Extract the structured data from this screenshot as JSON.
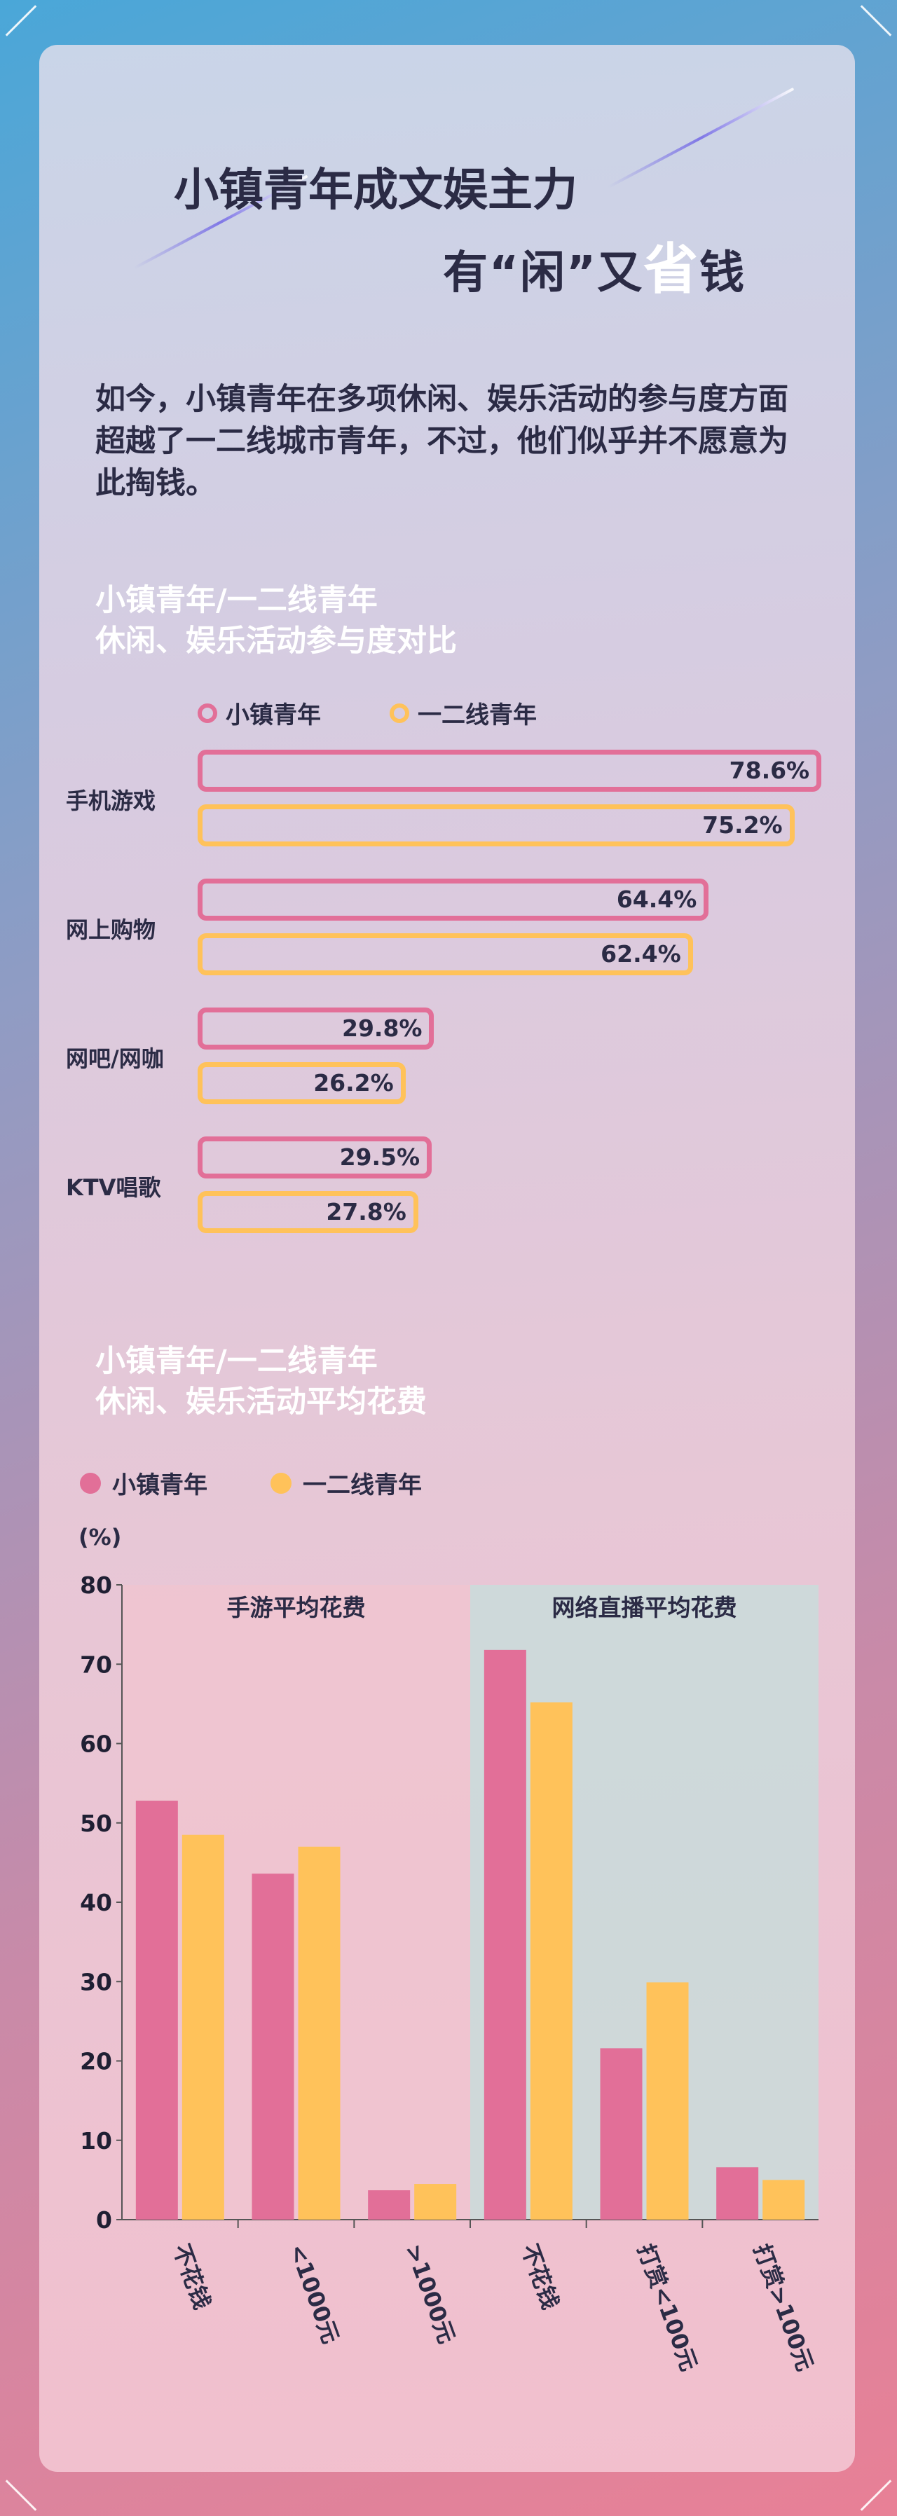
{
  "header": {
    "title_line1": "小镇青年成文娱主力",
    "title_line2_a": "有“闲”又",
    "title_line2_em": "省",
    "title_line2_b": "钱"
  },
  "intro": "如今，小镇青年在多项休闲、娱乐活动的参与度方面超越了一二线城市青年，不过，他们似乎并不愿意为此掏钱。",
  "colors": {
    "town": "#e26f98",
    "city": "#ffc25a",
    "panel_left": "#f0c4d0",
    "panel_right": "#c9dcda",
    "text": "#2b2b45"
  },
  "section1": {
    "title": "小镇青年/一二线青年\n休闲、娱乐活动参与度对比",
    "legend": {
      "town": "小镇青年",
      "city": "一二线青年"
    }
  },
  "section2": {
    "title": "小镇青年/一二线青年\n休闲、娱乐活动平均花费",
    "legend": {
      "town": "小镇青年",
      "city": "一二线青年"
    },
    "unit": "(%)"
  },
  "chart_data": [
    {
      "type": "bar",
      "orientation": "horizontal",
      "categories": [
        "手机游戏",
        "网上购物",
        "网吧/网咖",
        "KTV唱歌"
      ],
      "series": [
        {
          "name": "小镇青年",
          "values": [
            78.6,
            64.4,
            29.8,
            29.5
          ],
          "labels": [
            "78.6%",
            "64.4%",
            "29.8%",
            "29.5%"
          ]
        },
        {
          "name": "一二线青年",
          "values": [
            75.2,
            62.4,
            26.2,
            27.8
          ],
          "labels": [
            "75.2%",
            "62.4%",
            "26.2%",
            "27.8%"
          ]
        }
      ]
    },
    {
      "type": "bar",
      "categories": [
        "不花钱",
        "<1000元",
        ">1000元",
        "不花钱",
        "打赏<100元",
        "打赏>100元"
      ],
      "groups": [
        "手游平均花费",
        "网络直播平均花费"
      ],
      "series": [
        {
          "name": "小镇青年",
          "values": [
            52.8,
            43.6,
            3.7,
            71.8,
            21.6,
            6.6
          ]
        },
        {
          "name": "一二线青年",
          "values": [
            48.5,
            47.0,
            4.5,
            65.2,
            29.9,
            5.0
          ]
        }
      ],
      "ylabel": "(%)",
      "ylim": [
        0,
        80
      ],
      "yticks": [
        0,
        10,
        20,
        30,
        40,
        50,
        60,
        70,
        80
      ]
    }
  ]
}
